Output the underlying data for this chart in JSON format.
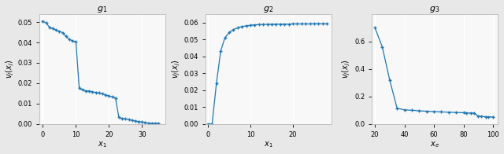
{
  "title1": "$g_1$",
  "title2": "$g_2$",
  "title3": "$g_3$",
  "xlabel1": "$x_1$",
  "xlabel2": "$x_1$",
  "xlabel3": "$x_e$",
  "ylabel1": "$v_j(x_j)$",
  "ylabel2": "$v_j(x_j)$",
  "ylabel3": "$v_j(x_j)$",
  "line_color": "#1f77b4",
  "marker": "+",
  "markersize": 3,
  "linewidth": 0.9,
  "background_color": "#e8e8e8",
  "plot_bg": "#f8f8f8",
  "grid_color": "#ffffff",
  "figsize": [
    6.4,
    1.96
  ],
  "dpi": 100,
  "subplot1": {
    "x": [
      0,
      1,
      2,
      3,
      4,
      5,
      6,
      7,
      8,
      9,
      10,
      11,
      12,
      13,
      14,
      15,
      16,
      17,
      18,
      19,
      20,
      21,
      22,
      23,
      24,
      25,
      26,
      27,
      28,
      29,
      30,
      31,
      32,
      33,
      34,
      35
    ],
    "y": [
      0.0503,
      0.0495,
      0.0475,
      0.0468,
      0.0462,
      0.0455,
      0.0448,
      0.043,
      0.0415,
      0.0408,
      0.0403,
      0.0175,
      0.0168,
      0.0163,
      0.0162,
      0.0158,
      0.0155,
      0.0153,
      0.0148,
      0.0143,
      0.0138,
      0.0133,
      0.0127,
      0.0033,
      0.0027,
      0.0025,
      0.0022,
      0.0018,
      0.0015,
      0.0012,
      0.001,
      0.0008,
      0.0005,
      0.0003,
      0.0003,
      0.0003
    ],
    "xlim": [
      -1,
      37
    ],
    "ylim": [
      0.0,
      0.054
    ],
    "xticks": [
      0,
      10,
      20,
      30
    ],
    "yticks": [
      0.0,
      0.01,
      0.02,
      0.03,
      0.04,
      0.05
    ]
  },
  "subplot2": {
    "x": [
      0,
      1,
      2,
      3,
      4,
      5,
      6,
      7,
      8,
      9,
      10,
      11,
      12,
      13,
      14,
      15,
      16,
      17,
      18,
      19,
      20,
      21,
      22,
      23,
      24,
      25,
      26,
      27,
      28
    ],
    "y": [
      0.0,
      0.0001,
      0.024,
      0.043,
      0.051,
      0.054,
      0.0558,
      0.0568,
      0.0575,
      0.058,
      0.0583,
      0.0586,
      0.0587,
      0.0588,
      0.0589,
      0.0589,
      0.059,
      0.059,
      0.059,
      0.059,
      0.0591,
      0.0591,
      0.0591,
      0.0591,
      0.0591,
      0.0592,
      0.0592,
      0.0592,
      0.0592
    ],
    "xlim": [
      -0.5,
      29
    ],
    "ylim": [
      0.0,
      0.065
    ],
    "xticks": [
      0,
      10,
      20
    ],
    "yticks": [
      0.0,
      0.01,
      0.02,
      0.03,
      0.04,
      0.05,
      0.06
    ]
  },
  "subplot3": {
    "x": [
      20,
      25,
      30,
      35,
      40,
      45,
      50,
      55,
      60,
      65,
      70,
      75,
      80,
      82,
      85,
      87,
      90,
      92,
      95,
      97,
      100
    ],
    "y": [
      0.7,
      0.56,
      0.32,
      0.115,
      0.103,
      0.1,
      0.096,
      0.093,
      0.09,
      0.088,
      0.086,
      0.084,
      0.082,
      0.081,
      0.08,
      0.08,
      0.058,
      0.056,
      0.053,
      0.052,
      0.052
    ],
    "xlim": [
      18,
      103
    ],
    "ylim": [
      0.0,
      0.8
    ],
    "xticks": [
      20,
      40,
      60,
      80,
      100
    ],
    "yticks": [
      0.0,
      0.2,
      0.4,
      0.6
    ]
  },
  "title_fontsize": 8,
  "label_fontsize": 7,
  "tick_fontsize": 6
}
